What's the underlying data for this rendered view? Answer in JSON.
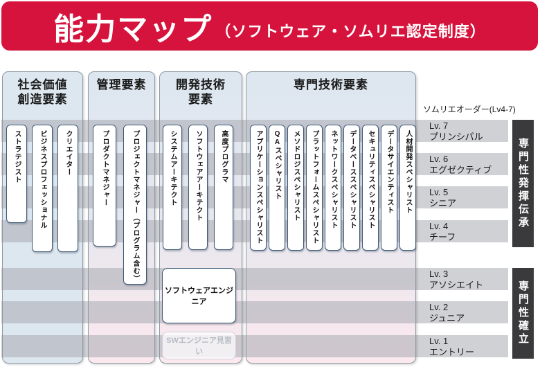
{
  "banner": {
    "title": "能力マップ",
    "subtitle": "（ソフトウェア・ソムリエ認定制度）"
  },
  "columns": [
    {
      "header_lines": [
        "社会価値",
        "創造要素"
      ],
      "items": [
        "ストラテジスト",
        "ビジネスプロフェッショナル",
        "クリエイター"
      ]
    },
    {
      "header_lines": [
        "管理要素"
      ],
      "items": [
        "プロダクトマネジャー",
        "プロジェクトマネジャー（プログラム含む）"
      ]
    },
    {
      "header_lines": [
        "開発技術",
        "要素"
      ],
      "items": [
        "システムアーキテクト",
        "ソフトウェアアーキテクト",
        "高度プログラマ"
      ],
      "extra_items": [
        "ソフトウェアエンジニア",
        "SWエンジニア見習い"
      ]
    },
    {
      "header_lines": [
        "専門技術要素"
      ],
      "items": [
        "アプリケーションスペシャリスト",
        "QAスペシャリスト",
        "メソドロジスペシャリスト",
        "プラットフォームスペシャリスト",
        "ネットワークスペシャリスト",
        "データベーススペシャリスト",
        "セキュリティスペシャリスト",
        "データサイエンティスト",
        "人材開発スペシャリスト"
      ]
    }
  ],
  "levels": {
    "order_label": "ソムリエオーダー(Lv4-7)",
    "items": [
      {
        "lv": "Lv. 7",
        "name": "プリンシパル"
      },
      {
        "lv": "Lv. 6",
        "name": "エグゼクティブ"
      },
      {
        "lv": "Lv. 5",
        "name": "シニア"
      },
      {
        "lv": "Lv. 4",
        "name": "チーフ"
      },
      {
        "lv": "Lv. 3",
        "name": "アソシエイト"
      },
      {
        "lv": "Lv. 2",
        "name": "ジュニア"
      },
      {
        "lv": "Lv. 1",
        "name": "エントリー"
      }
    ]
  },
  "side_bars": [
    {
      "label": "専門性発揮伝承"
    },
    {
      "label": "専門性確立"
    }
  ],
  "colors": {
    "banner_red": "#d6133c",
    "column_blue": "#dde7f0",
    "column_pink": "#fbe9ee",
    "box_border": "#3d5a78",
    "bar_dark": "#3a3a3c"
  }
}
